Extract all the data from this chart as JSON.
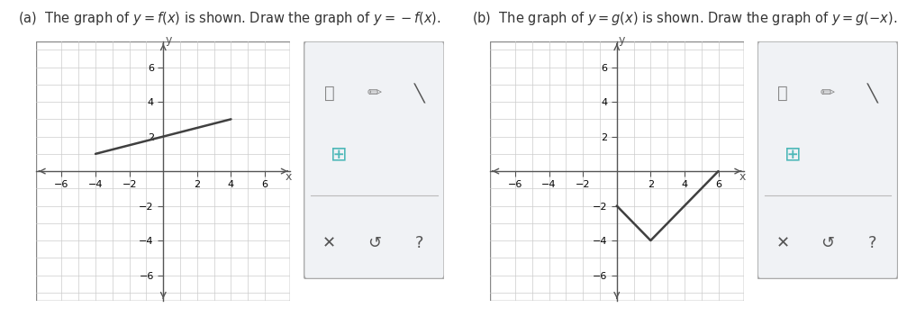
{
  "title_a": "(a)  The graph of $y=f(x)$ is shown. Draw the graph of $y=-f(x)$.",
  "title_b": "(b)  The graph of $y=g\\left(x\\right)$ is shown. Draw the graph of $y=g\\left(-x\\right)$.",
  "graph_a_line": [
    [
      -4,
      1
    ],
    [
      4,
      3
    ]
  ],
  "graph_b_line": [
    [
      0,
      -2
    ],
    [
      2,
      -4
    ],
    [
      6,
      0
    ]
  ],
  "xlim": [
    -7.5,
    7.5
  ],
  "ylim": [
    -7.5,
    7.5
  ],
  "xticks": [
    -6,
    -4,
    -2,
    2,
    4,
    6
  ],
  "yticks": [
    -6,
    -4,
    -2,
    2,
    4,
    6
  ],
  "line_color": "#404040",
  "axis_color": "#555555",
  "grid_color": "#cccccc",
  "bg_color": "#ffffff",
  "panel_bg": "#e8ecf0",
  "border_color": "#aaaaaa",
  "tick_fontsize": 8,
  "title_fontsize": 10.5,
  "line_width": 1.8
}
